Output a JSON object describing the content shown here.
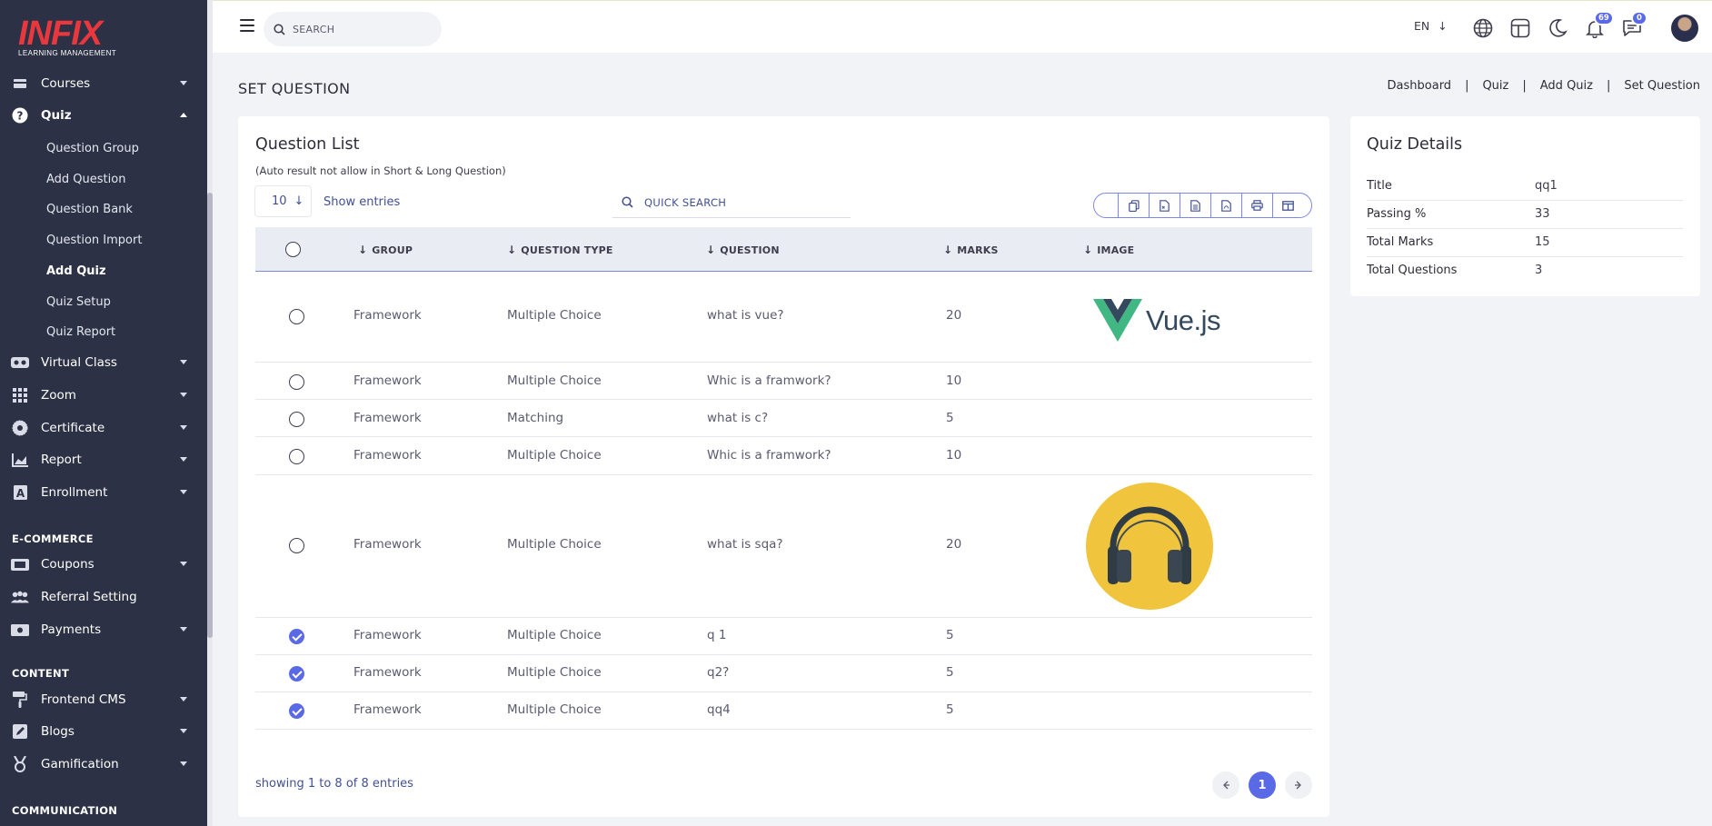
{
  "brand": {
    "logo_text": "INFIX",
    "logo_sub": "LEARNING MANAGEMENT"
  },
  "sidebar": {
    "items": [
      {
        "label": "Courses",
        "icon": "courses-icon"
      },
      {
        "label": "Quiz",
        "icon": "question-circle-icon"
      },
      {
        "label": "Question Group"
      },
      {
        "label": "Add Question"
      },
      {
        "label": "Question Bank"
      },
      {
        "label": "Question Import"
      },
      {
        "label": "Add Quiz"
      },
      {
        "label": "Quiz Setup"
      },
      {
        "label": "Quiz Report"
      },
      {
        "label": "Virtual Class",
        "icon": "vr-headset-icon"
      },
      {
        "label": "Zoom",
        "icon": "grid-icon"
      },
      {
        "label": "Certificate",
        "icon": "certificate-icon"
      },
      {
        "label": "Report",
        "icon": "chart-icon"
      },
      {
        "label": "Enrollment",
        "icon": "enrollment-icon"
      },
      {
        "label": "Coupons",
        "icon": "coupon-icon"
      },
      {
        "label": "Referral Setting",
        "icon": "users-icon"
      },
      {
        "label": "Payments",
        "icon": "money-icon"
      },
      {
        "label": "Frontend CMS",
        "icon": "paint-roller-icon"
      },
      {
        "label": "Blogs",
        "icon": "pen-icon"
      },
      {
        "label": "Gamification",
        "icon": "medal-icon"
      }
    ],
    "sections": {
      "ecommerce": "E-COMMERCE",
      "content": "CONTENT",
      "communication": "COMMUNICATION"
    }
  },
  "topbar": {
    "search_placeholder": "SEARCH",
    "language": "EN",
    "notifications_count": "69",
    "messages_count": "0"
  },
  "page": {
    "title": "SET QUESTION",
    "breadcrumb": [
      "Dashboard",
      "Quiz",
      "Add Quiz",
      "Set Question"
    ]
  },
  "question_list": {
    "title": "Question List",
    "note": "(Auto result not allow in Short & Long Question)",
    "page_size": "10",
    "show_entries": "Show entries",
    "quick_search": "QUICK SEARCH",
    "columns": [
      "GROUP",
      "QUESTION TYPE",
      "QUESTION",
      "MARKS",
      "IMAGE"
    ],
    "rows": [
      {
        "group": "Framework",
        "type": "Multiple Choice",
        "question": "what is vue?",
        "marks": "20",
        "checked": false,
        "image": "Vue.js"
      },
      {
        "group": "Framework",
        "type": "Multiple Choice",
        "question": "Whic is a framwork?",
        "marks": "10",
        "checked": false,
        "image": ""
      },
      {
        "group": "Framework",
        "type": "Matching",
        "question": "what is c?",
        "marks": "5",
        "checked": false,
        "image": ""
      },
      {
        "group": "Framework",
        "type": "Multiple Choice",
        "question": "Whic is a framwork?",
        "marks": "10",
        "checked": false,
        "image": ""
      },
      {
        "group": "Framework",
        "type": "Multiple Choice",
        "question": "what is sqa?",
        "marks": "20",
        "checked": false,
        "image": "headphones"
      },
      {
        "group": "Framework",
        "type": "Multiple Choice",
        "question": "q 1",
        "marks": "5",
        "checked": true,
        "image": ""
      },
      {
        "group": "Framework",
        "type": "Multiple Choice",
        "question": "q2?",
        "marks": "5",
        "checked": true,
        "image": ""
      },
      {
        "group": "Framework",
        "type": "Multiple Choice",
        "question": "qq4",
        "marks": "5",
        "checked": true,
        "image": ""
      }
    ],
    "showing": "showing 1 to 8 of 8 entries",
    "current_page": "1"
  },
  "quiz_details": {
    "title": "Quiz Details",
    "rows": [
      {
        "label": "Title",
        "value": "qq1"
      },
      {
        "label": "Passing %",
        "value": "33"
      },
      {
        "label": "Total Marks",
        "value": "15"
      },
      {
        "label": "Total Questions",
        "value": "3"
      }
    ]
  },
  "colors": {
    "sidebar_bg": "#2c3145",
    "accent": "#5a69e6",
    "logo_red": "#e8383d"
  }
}
